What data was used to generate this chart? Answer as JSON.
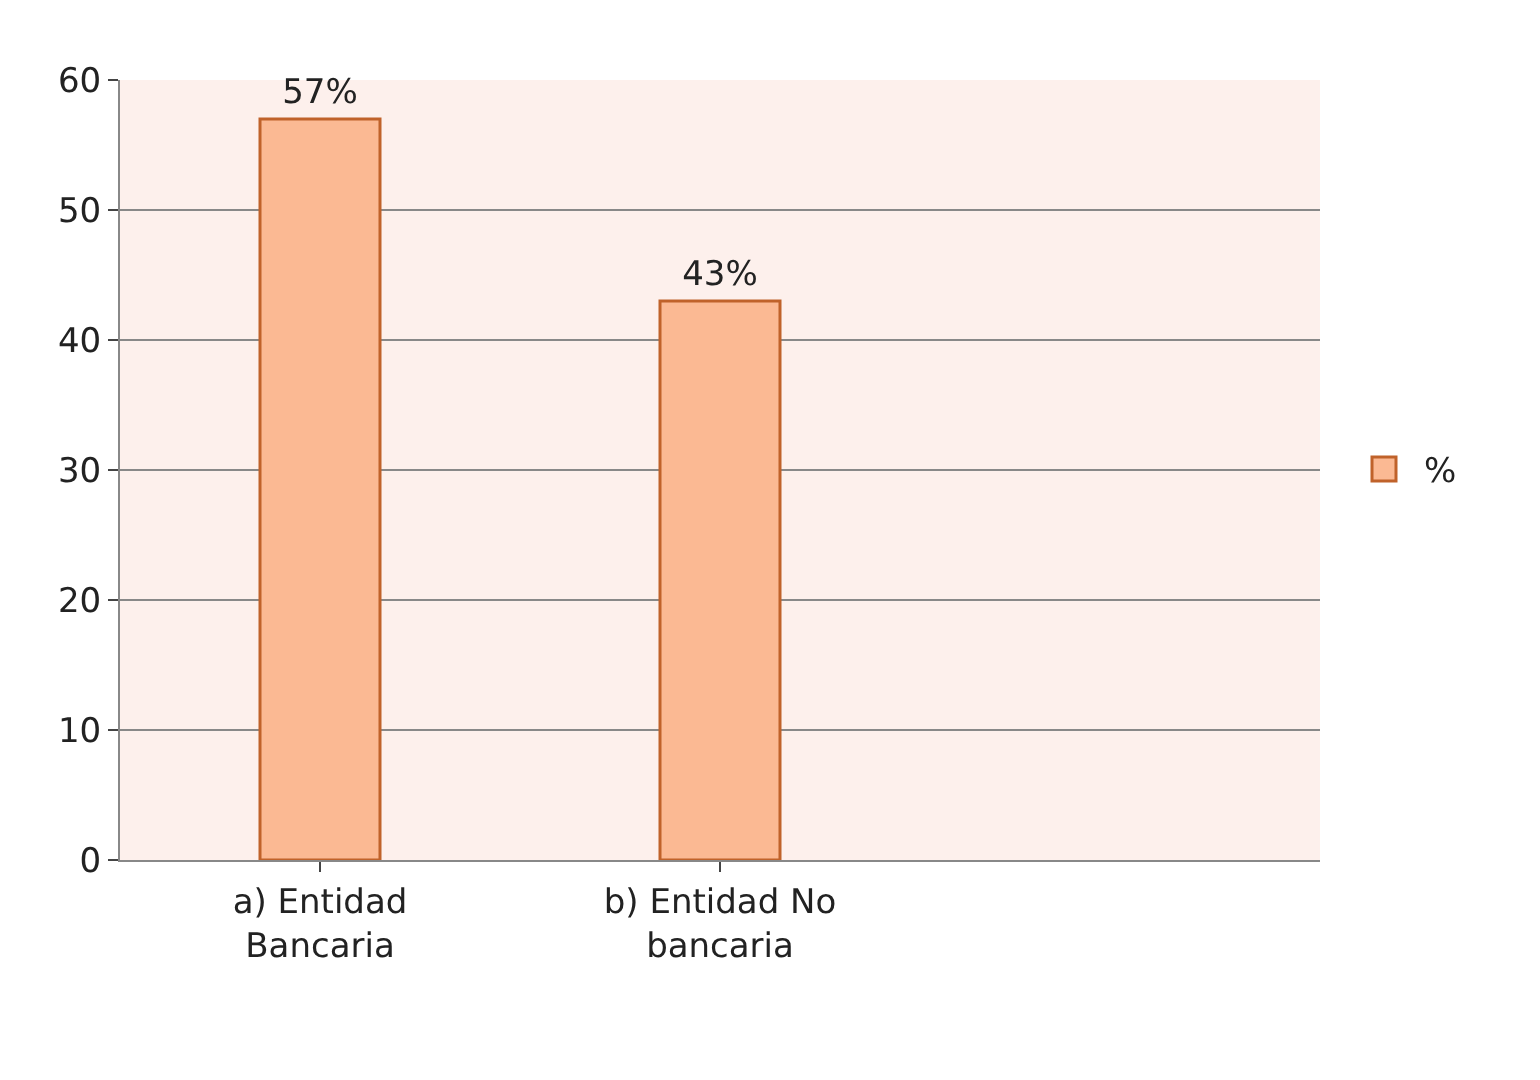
{
  "chart_data": {
    "type": "bar",
    "categories": [
      "a) Entidad Bancaria",
      "b) Entidad No bancaria",
      null
    ],
    "series": [
      {
        "name": "%",
        "color": "#fbb993",
        "values": [
          57,
          43,
          null
        ],
        "value_labels": [
          "57%",
          "43%",
          null
        ]
      }
    ],
    "ylim": [
      0,
      60
    ],
    "yticks": [
      0,
      10,
      20,
      30,
      40,
      50,
      60
    ],
    "grid": "y",
    "legend": "right"
  }
}
